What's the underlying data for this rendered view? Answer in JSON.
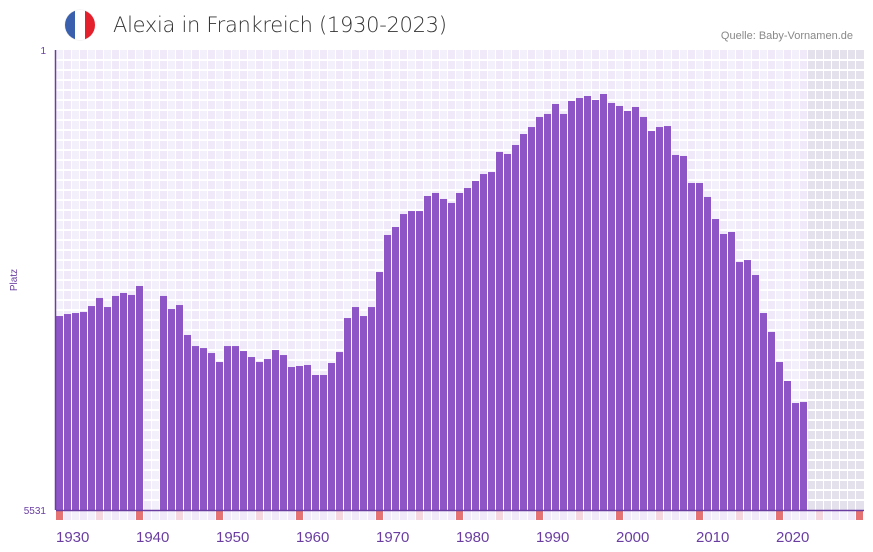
{
  "header": {
    "title": "Alexia in Frankreich (1930-2023)",
    "source": "Quelle: Baby-Vornamen.de",
    "flag_icon": "france-flag-icon",
    "flag_colors": [
      "#3a5fad",
      "#ffffff",
      "#e3202b"
    ]
  },
  "colors": {
    "bar": "#8e55c7",
    "axis": "#6a3ea1",
    "decade_marker": "#e57373",
    "half_decade_marker": "#f5d7df",
    "future_shade": "#e4e0ec"
  },
  "chart_data": {
    "type": "bar",
    "title": "Alexia in Frankreich (1930-2023)",
    "xlabel": "",
    "ylabel": "Platz",
    "y_ticks": [
      "1",
      "5531"
    ],
    "ylim": [
      1,
      5531
    ],
    "y_inverted": true,
    "x_range": [
      1930,
      2030
    ],
    "x_ticks": [
      "1930",
      "1940",
      "1950",
      "1960",
      "1970",
      "1980",
      "1990",
      "2000",
      "2010",
      "2020"
    ],
    "grid": true,
    "years": [
      1930,
      1931,
      1932,
      1933,
      1934,
      1935,
      1936,
      1937,
      1938,
      1939,
      1940,
      1941,
      1942,
      1943,
      1944,
      1945,
      1946,
      1947,
      1948,
      1949,
      1950,
      1951,
      1952,
      1953,
      1954,
      1955,
      1956,
      1957,
      1958,
      1959,
      1960,
      1961,
      1962,
      1963,
      1964,
      1965,
      1966,
      1967,
      1968,
      1969,
      1970,
      1971,
      1972,
      1973,
      1974,
      1975,
      1976,
      1977,
      1978,
      1979,
      1980,
      1981,
      1982,
      1983,
      1984,
      1985,
      1986,
      1987,
      1988,
      1989,
      1990,
      1991,
      1992,
      1993,
      1994,
      1995,
      1996,
      1997,
      1998,
      1999,
      2000,
      2001,
      2002,
      2003,
      2004,
      2005,
      2006,
      2007,
      2008,
      2009,
      2010,
      2011,
      2012,
      2013,
      2014,
      2015,
      2016,
      2017,
      2018,
      2019,
      2020,
      2021,
      2022,
      2023
    ],
    "ranks": [
      3199,
      3175,
      3163,
      3151,
      3079,
      2982,
      3091,
      2958,
      2922,
      2946,
      2838,
      null,
      null,
      2958,
      3115,
      3067,
      3427,
      3560,
      3584,
      3644,
      3752,
      3560,
      3560,
      3620,
      3692,
      3752,
      3716,
      3608,
      3668,
      3812,
      3800,
      3788,
      3908,
      3908,
      3764,
      3632,
      3223,
      3091,
      3199,
      3091,
      2670,
      2225,
      2129,
      1973,
      1937,
      1937,
      1756,
      1720,
      1792,
      1840,
      1720,
      1660,
      1576,
      1492,
      1468,
      1227,
      1251,
      1143,
      1011,
      927,
      806,
      770,
      650,
      770,
      614,
      578,
      554,
      602,
      530,
      638,
      674,
      734,
      686,
      806,
      975,
      927,
      915,
      1263,
      1275,
      1600,
      1600,
      1768,
      2033,
      2213,
      2189,
      2550,
      2526,
      2706,
      3163,
      3391,
      3752,
      3980,
      4245,
      4233
    ]
  }
}
